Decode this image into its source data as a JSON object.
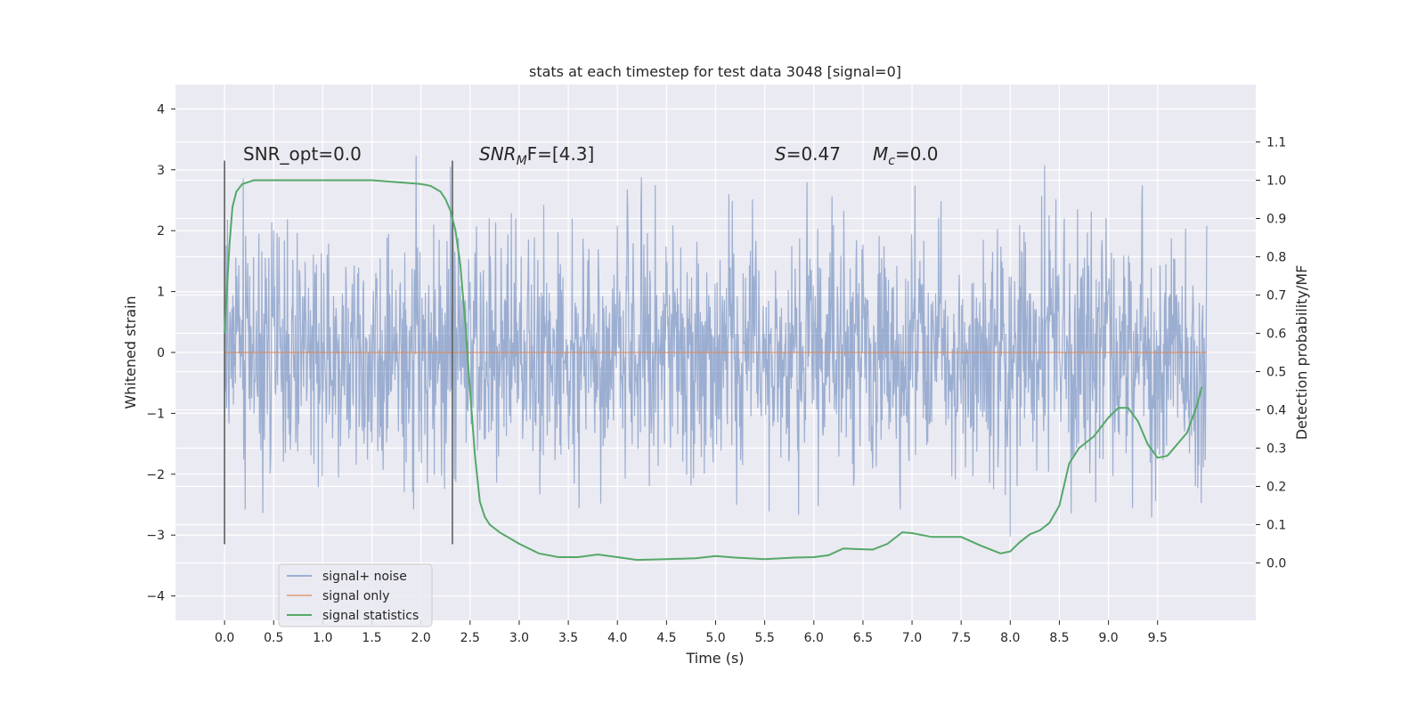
{
  "chart_data": {
    "type": "line",
    "title": "stats at each timestep for test data 3048 [signal=0]",
    "xlabel": "Time (s)",
    "ylabel": "Whitened strain",
    "y2label": "Detection probability/MF",
    "xlim": [
      -0.5,
      10.5
    ],
    "ylim": [
      -4.4,
      4.4
    ],
    "y2lim": [
      -0.15,
      1.25
    ],
    "xticks": [
      0.0,
      0.5,
      1.0,
      1.5,
      2.0,
      2.5,
      3.0,
      3.5,
      4.0,
      4.5,
      5.0,
      5.5,
      6.0,
      6.5,
      7.0,
      7.5,
      8.0,
      8.5,
      9.0,
      9.5
    ],
    "xtick_labels": [
      "0.0",
      "0.5",
      "1.0",
      "1.5",
      "2.0",
      "2.5",
      "3.0",
      "3.5",
      "4.0",
      "4.5",
      "5.0",
      "5.5",
      "6.0",
      "6.5",
      "7.0",
      "7.5",
      "8.0",
      "8.5",
      "9.0",
      "9.5"
    ],
    "yticks": [
      4,
      3,
      2,
      1,
      0,
      -1,
      -2,
      -3,
      -4
    ],
    "ytick_labels": [
      "4",
      "3",
      "2",
      "1",
      "0",
      "−1",
      "−2",
      "−3",
      "−4"
    ],
    "y2ticks": [
      1.1,
      1.0,
      0.9,
      0.8,
      0.7,
      0.6,
      0.5,
      0.4,
      0.3,
      0.2,
      0.1,
      0.0
    ],
    "y2tick_labels": [
      "1.1",
      "1.0",
      "0.9",
      "0.8",
      "0.7",
      "0.6",
      "0.5",
      "0.4",
      "0.3",
      "0.2",
      "0.1",
      "0.0"
    ],
    "grid": true,
    "background": "#eaeaf2",
    "legend_position": "lower-left",
    "series": [
      {
        "name": "signal+ noise",
        "color": "#4c72b0",
        "kind": "noise",
        "x_range": [
          0.0,
          10.0
        ],
        "envelope": [
          -4.0,
          4.0
        ]
      },
      {
        "name": "signal only",
        "color": "#dd8452",
        "x": [
          0.0,
          10.0
        ],
        "y": [
          0.0,
          0.0
        ]
      },
      {
        "name": "signal statistics",
        "color": "#55a868",
        "axis": "right",
        "x": [
          0.0,
          0.05,
          0.08,
          0.12,
          0.18,
          0.3,
          0.5,
          1.0,
          1.5,
          2.0,
          2.1,
          2.2,
          2.25,
          2.3,
          2.35,
          2.4,
          2.45,
          2.5,
          2.55,
          2.6,
          2.65,
          2.7,
          2.8,
          2.9,
          3.0,
          3.2,
          3.4,
          3.6,
          3.8,
          4.0,
          4.2,
          4.5,
          4.8,
          5.0,
          5.2,
          5.5,
          5.8,
          6.0,
          6.15,
          6.3,
          6.45,
          6.6,
          6.75,
          6.9,
          7.0,
          7.2,
          7.5,
          7.7,
          7.9,
          8.0,
          8.1,
          8.2,
          8.3,
          8.4,
          8.5,
          8.6,
          8.7,
          8.85,
          9.0,
          9.1,
          9.2,
          9.3,
          9.4,
          9.5,
          9.6,
          9.7,
          9.8,
          9.9,
          9.95
        ],
        "y": [
          0.6,
          0.83,
          0.93,
          0.97,
          0.99,
          1.0,
          1.0,
          1.0,
          1.0,
          0.99,
          0.985,
          0.97,
          0.95,
          0.92,
          0.87,
          0.78,
          0.63,
          0.45,
          0.28,
          0.16,
          0.12,
          0.1,
          0.08,
          0.065,
          0.05,
          0.025,
          0.015,
          0.015,
          0.022,
          0.015,
          0.008,
          0.01,
          0.012,
          0.018,
          0.014,
          0.01,
          0.014,
          0.015,
          0.02,
          0.038,
          0.036,
          0.035,
          0.05,
          0.08,
          0.078,
          0.068,
          0.068,
          0.045,
          0.025,
          0.03,
          0.055,
          0.075,
          0.085,
          0.105,
          0.15,
          0.26,
          0.3,
          0.33,
          0.38,
          0.405,
          0.405,
          0.37,
          0.31,
          0.275,
          0.28,
          0.31,
          0.34,
          0.41,
          0.46
        ]
      }
    ],
    "vertical_lines": [
      {
        "x": 0.0,
        "y_from": -3.15,
        "y_to": 3.15,
        "color": "#555555"
      },
      {
        "x": 2.32,
        "y_from": -3.15,
        "y_to": 3.15,
        "color": "#555555"
      }
    ],
    "annotations": [
      {
        "id": "snr_opt",
        "text": "SNR_opt=0.0"
      },
      {
        "id": "snr_mf",
        "base": "SNR",
        "sub": "M",
        "rest": "F=[4.3]"
      },
      {
        "id": "s",
        "base": "S",
        "rest": "=0.47"
      },
      {
        "id": "mc",
        "base": "M",
        "sub": "c",
        "rest": "=0.0"
      }
    ]
  }
}
